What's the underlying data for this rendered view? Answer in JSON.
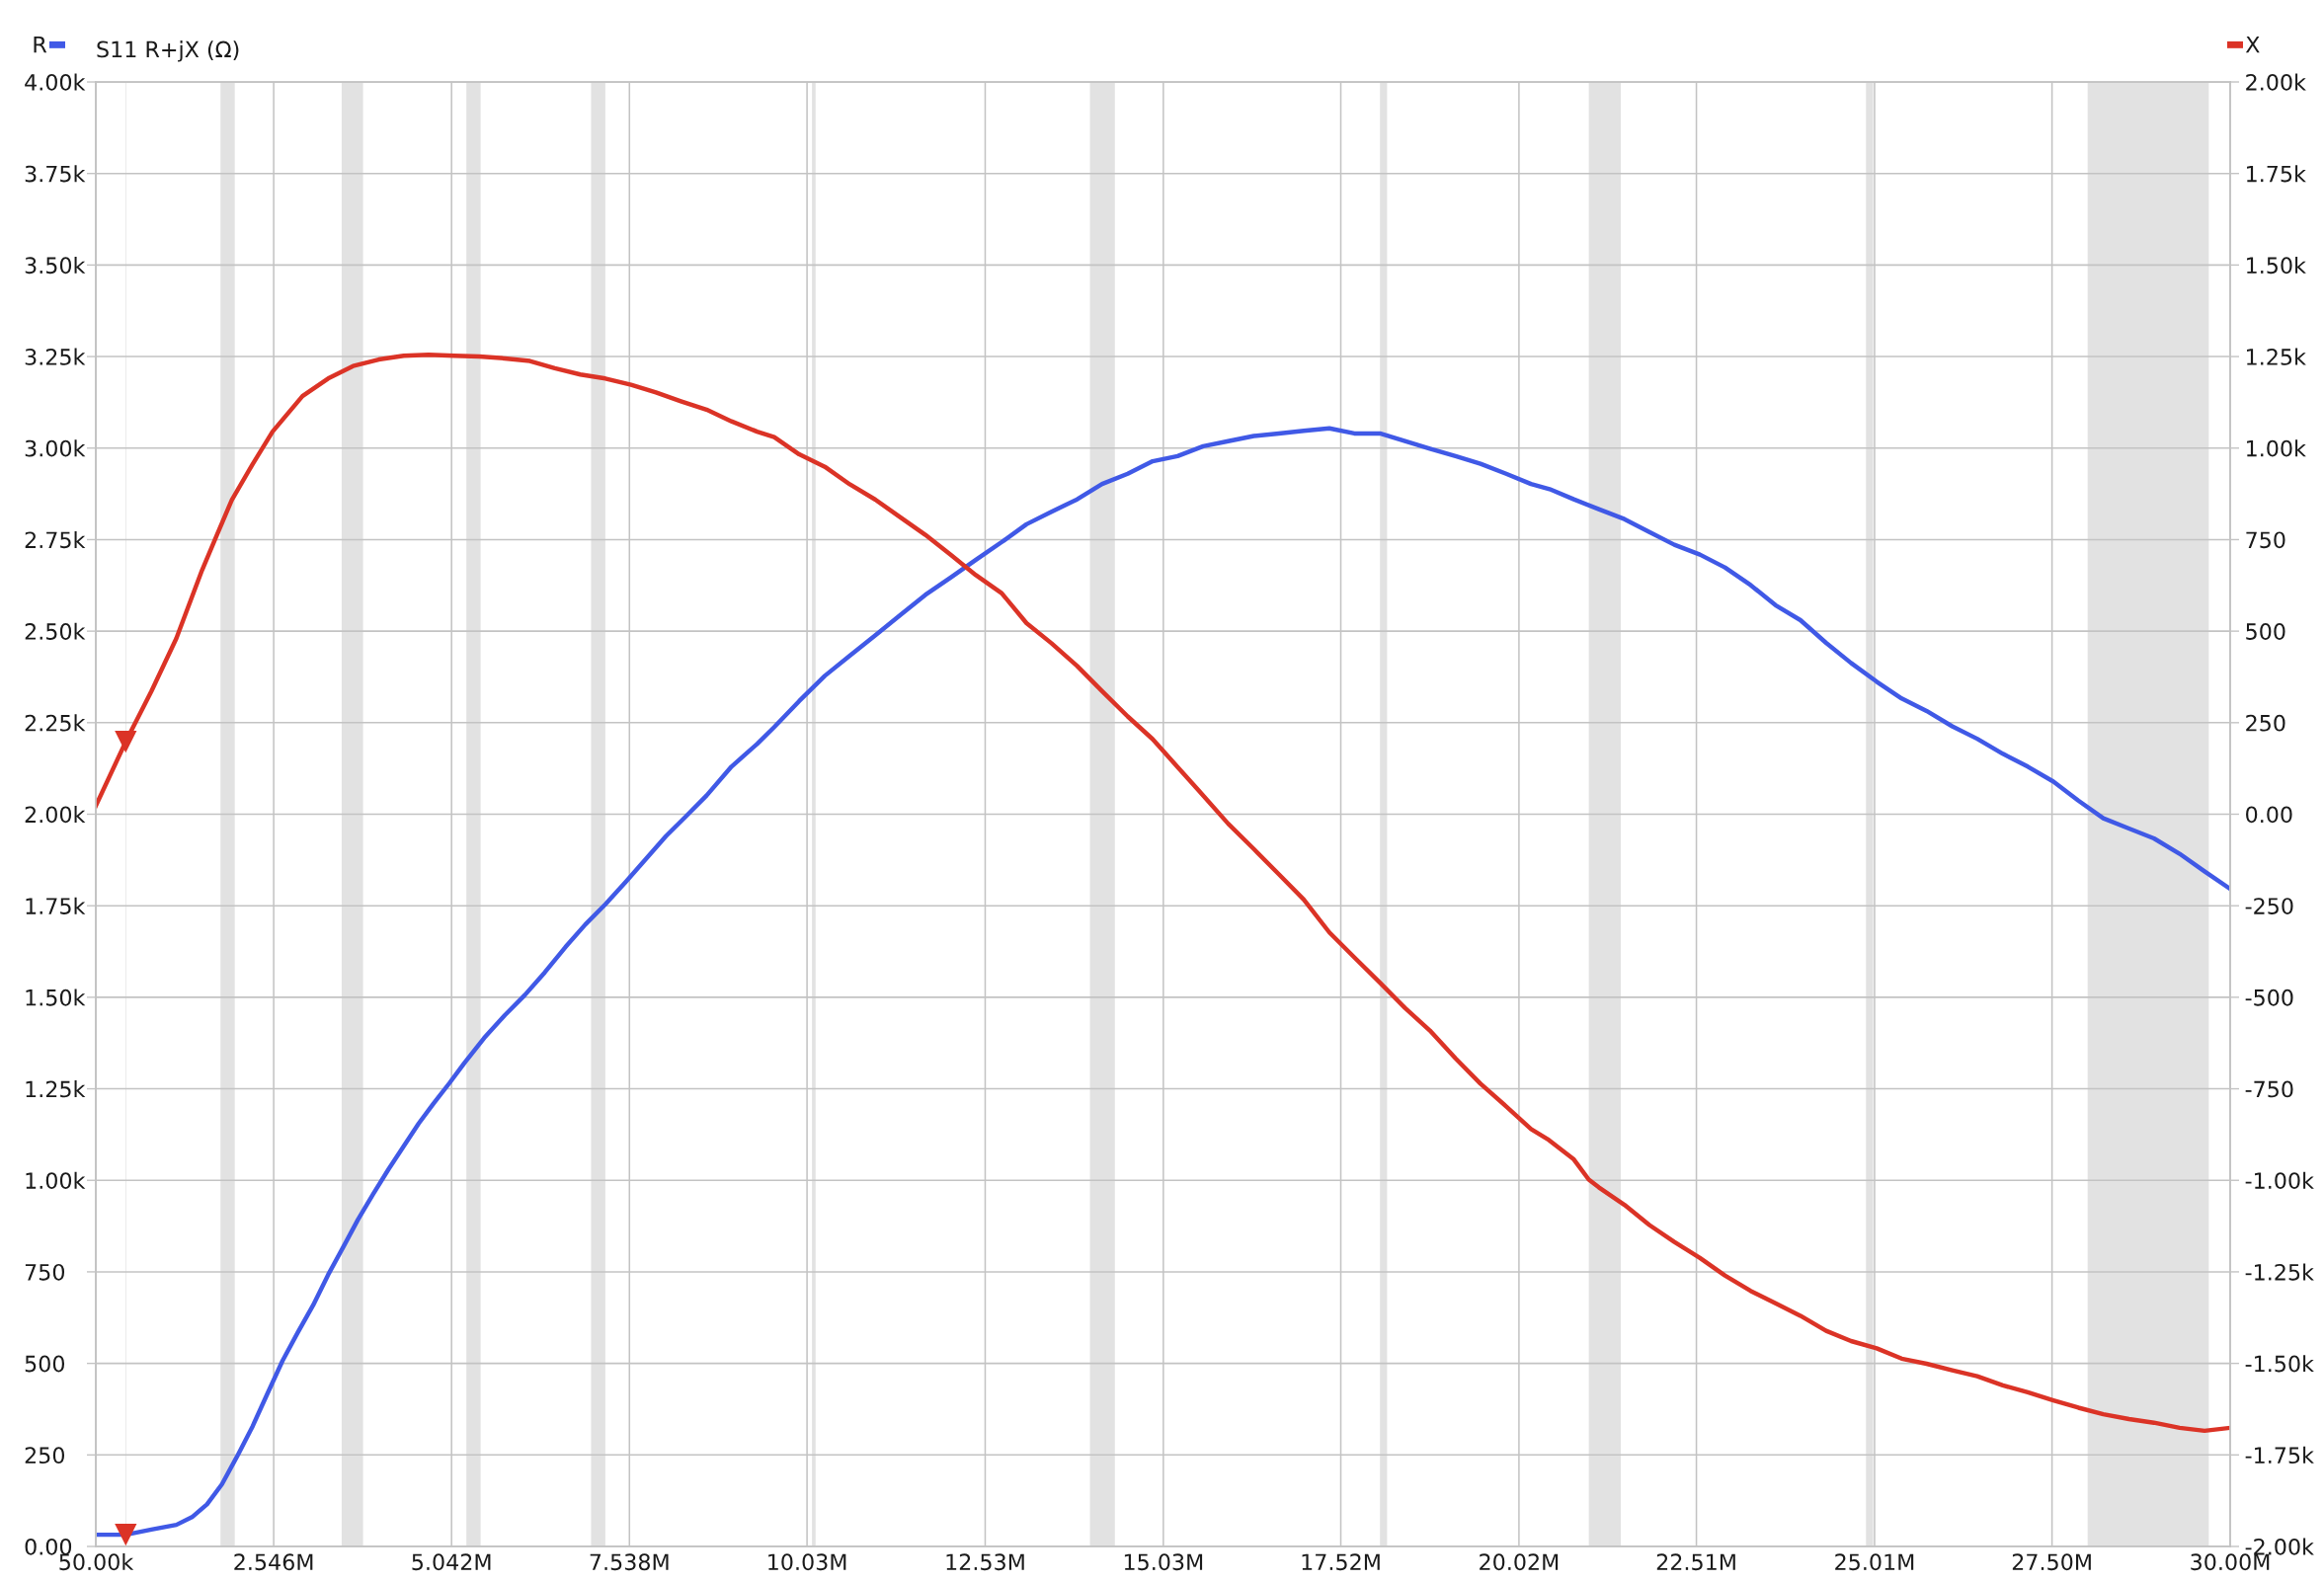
{
  "chart_data": {
    "type": "line",
    "title": "S11 R+jX (Ω)",
    "xlim": [
      50000,
      30000000
    ],
    "xticks": [
      {
        "value": 50000,
        "label": "50.00k"
      },
      {
        "value": 2546000,
        "label": "2.546M"
      },
      {
        "value": 5042000,
        "label": "5.042M"
      },
      {
        "value": 7538000,
        "label": "7.538M"
      },
      {
        "value": 10030000,
        "label": "10.03M"
      },
      {
        "value": 12530000,
        "label": "12.53M"
      },
      {
        "value": 15030000,
        "label": "15.03M"
      },
      {
        "value": 17520000,
        "label": "17.52M"
      },
      {
        "value": 20020000,
        "label": "20.02M"
      },
      {
        "value": 22510000,
        "label": "22.51M"
      },
      {
        "value": 25010000,
        "label": "25.01M"
      },
      {
        "value": 27500000,
        "label": "27.50M"
      },
      {
        "value": 30000000,
        "label": "30.00M"
      }
    ],
    "ylim": [
      0,
      4000
    ],
    "yticks": [
      {
        "value": 0,
        "label": "0.00"
      },
      250,
      500,
      750,
      {
        "value": 1000,
        "label": "1.00k"
      },
      {
        "value": 1250,
        "label": "1.25k"
      },
      {
        "value": 1500,
        "label": "1.50k"
      },
      {
        "value": 1750,
        "label": "1.75k"
      },
      {
        "value": 2000,
        "label": "2.00k"
      },
      {
        "value": 2250,
        "label": "2.25k"
      },
      {
        "value": 2500,
        "label": "2.50k"
      },
      {
        "value": 2750,
        "label": "2.75k"
      },
      {
        "value": 3000,
        "label": "3.00k"
      },
      {
        "value": 3250,
        "label": "3.25k"
      },
      {
        "value": 3500,
        "label": "3.50k"
      },
      {
        "value": 3750,
        "label": "3.75k"
      },
      {
        "value": 4000,
        "label": "4.00k"
      }
    ],
    "y2lim": [
      -2000,
      2000
    ],
    "y2ticks": [
      {
        "value": -2000,
        "label": "-2.00k"
      },
      {
        "value": -1750,
        "label": "-1.75k"
      },
      {
        "value": -1500,
        "label": "-1.50k"
      },
      {
        "value": -1250,
        "label": "-1.25k"
      },
      {
        "value": -1000,
        "label": "-1.00k"
      },
      -750,
      -500,
      -250,
      {
        "value": 0,
        "label": "0.00"
      },
      250,
      500,
      750,
      {
        "value": 1000,
        "label": "1.00k"
      },
      {
        "value": 1250,
        "label": "1.25k"
      },
      {
        "value": 1500,
        "label": "1.50k"
      },
      {
        "value": 1750,
        "label": "1.75k"
      },
      {
        "value": 2000,
        "label": "2.00k"
      }
    ],
    "grid": true,
    "legend": "top",
    "line_style": "solid",
    "bands": [
      {
        "axis": "x",
        "from": 470000,
        "to": 480000,
        "color": "#e2e2e2"
      },
      {
        "axis": "x",
        "from": 1800000,
        "to": 2000000,
        "color": "#e2e2e2"
      },
      {
        "axis": "x",
        "from": 3500000,
        "to": 3800000,
        "color": "#e2e2e2"
      },
      {
        "axis": "x",
        "from": 5250000,
        "to": 5450000,
        "color": "#e2e2e2"
      },
      {
        "axis": "x",
        "from": 7000000,
        "to": 7200000,
        "color": "#e2e2e2"
      },
      {
        "axis": "x",
        "from": 10100000,
        "to": 10150000,
        "color": "#e2e2e2"
      },
      {
        "axis": "x",
        "from": 14000000,
        "to": 14350000,
        "color": "#e2e2e2"
      },
      {
        "axis": "x",
        "from": 18070000,
        "to": 18170000,
        "color": "#e2e2e2"
      },
      {
        "axis": "x",
        "from": 21000000,
        "to": 21450000,
        "color": "#e2e2e2"
      },
      {
        "axis": "x",
        "from": 24890000,
        "to": 24990000,
        "color": "#e2e2e2"
      },
      {
        "axis": "x",
        "from": 28000000,
        "to": 29700000,
        "color": "#e2e2e2"
      }
    ],
    "series": [
      {
        "name": "R",
        "color": "#4059e6",
        "x": [
          50000,
          470000,
          830000,
          1180000,
          1400000,
          1610000,
          1820000,
          2030000,
          2250000,
          2460000,
          2670000,
          2880000,
          3100000,
          3310000,
          3520000,
          3730000,
          3940000,
          4160000,
          4370000,
          4580000,
          4790000,
          5010000,
          5220000,
          5500000,
          5790000,
          6070000,
          6350000,
          6640000,
          6920000,
          7200000,
          7490000,
          7770000,
          8050000,
          8340000,
          8620000,
          8970000,
          9330000,
          9570000,
          9920000,
          10280000,
          10630000,
          10990000,
          11340000,
          11690000,
          12050000,
          12400000,
          12760000,
          13110000,
          13460000,
          13820000,
          14170000,
          14530000,
          14880000,
          15230000,
          15590000,
          15940000,
          16300000,
          16650000,
          17000000,
          17360000,
          17710000,
          18070000,
          18420000,
          18770000,
          19130000,
          19480000,
          19840000,
          20190000,
          20450000,
          20790000,
          21140000,
          21500000,
          21850000,
          22200000,
          22560000,
          22910000,
          23270000,
          23620000,
          23970000,
          24330000,
          24680000,
          25040000,
          25390000,
          25740000,
          26100000,
          26450000,
          26810000,
          27160000,
          27520000,
          27870000,
          28220000,
          28580000,
          28930000,
          29290000,
          29640000,
          30000000
        ],
        "values": [
          32,
          32,
          46,
          59,
          80,
          115,
          170,
          245,
          328,
          418,
          507,
          583,
          659,
          742,
          817,
          893,
          962,
          1031,
          1093,
          1155,
          1210,
          1265,
          1320,
          1389,
          1451,
          1506,
          1568,
          1637,
          1699,
          1754,
          1816,
          1878,
          1940,
          1996,
          2051,
          2130,
          2192,
          2238,
          2309,
          2378,
          2433,
          2489,
          2544,
          2599,
          2647,
          2695,
          2743,
          2792,
          2826,
          2860,
          2902,
          2930,
          2964,
          2978,
          3005,
          3019,
          3033,
          3040,
          3047,
          3054,
          3040,
          3040,
          3019,
          2998,
          2978,
          2957,
          2930,
          2902,
          2888,
          2860,
          2833,
          2806,
          2771,
          2736,
          2709,
          2674,
          2626,
          2571,
          2530,
          2468,
          2413,
          2362,
          2316,
          2282,
          2240,
          2206,
          2165,
          2130,
          2089,
          2037,
          1989,
          1961,
          1934,
          1892,
          1844,
          1796
        ]
      },
      {
        "name": "X",
        "color": "#db3326",
        "axis": "y2",
        "x": [
          50000,
          470000,
          830000,
          1180000,
          1540000,
          1750000,
          1960000,
          2250000,
          2530000,
          2950000,
          3310000,
          3660000,
          4020000,
          4370000,
          4720000,
          5080000,
          5430000,
          5790000,
          6140000,
          6490000,
          6850000,
          7200000,
          7560000,
          7910000,
          8260000,
          8620000,
          8970000,
          9330000,
          9570000,
          9920000,
          10280000,
          10630000,
          10990000,
          11340000,
          11690000,
          12050000,
          12400000,
          12760000,
          13110000,
          13460000,
          13820000,
          14170000,
          14530000,
          14880000,
          15230000,
          15520000,
          15940000,
          16300000,
          16650000,
          17000000,
          17360000,
          17710000,
          18070000,
          18420000,
          18770000,
          19130000,
          19480000,
          19840000,
          20190000,
          20440000,
          20790000,
          21000000,
          21140000,
          21500000,
          21850000,
          22200000,
          22560000,
          22910000,
          23270000,
          23620000,
          23970000,
          24330000,
          24680000,
          25040000,
          25390000,
          25740000,
          26100000,
          26450000,
          26810000,
          27160000,
          27520000,
          27870000,
          28220000,
          28580000,
          28930000,
          29290000,
          29640000,
          30000000
        ],
        "values": [
          23,
          198,
          336,
          480,
          666,
          763,
          859,
          956,
          1045,
          1142,
          1190,
          1224,
          1242,
          1252,
          1255,
          1252,
          1250,
          1245,
          1238,
          1218,
          1201,
          1190,
          1173,
          1152,
          1128,
          1105,
          1073,
          1045,
          1030,
          983,
          949,
          901,
          859,
          811,
          763,
          708,
          653,
          604,
          522,
          467,
          405,
          336,
          267,
          205,
          129,
          66,
          -26,
          -95,
          -164,
          -233,
          -323,
          -391,
          -460,
          -529,
          -591,
          -667,
          -736,
          -798,
          -860,
          -890,
          -943,
          -998,
          -1019,
          -1067,
          -1122,
          -1168,
          -1212,
          -1260,
          -1302,
          -1336,
          -1370,
          -1411,
          -1439,
          -1459,
          -1487,
          -1501,
          -1519,
          -1535,
          -1560,
          -1579,
          -1601,
          -1621,
          -1639,
          -1652,
          -1662,
          -1676,
          -1684,
          -1676
        ]
      },
      {
        "type": "scatter",
        "color": "#db3326",
        "marker": "triangle",
        "x": [
          470000
        ],
        "values": [
          32
        ]
      },
      {
        "type": "scatter",
        "color": "#db3326",
        "marker": "triangle",
        "axis": "y2",
        "x": [
          470000
        ],
        "values": [
          198
        ]
      }
    ]
  }
}
